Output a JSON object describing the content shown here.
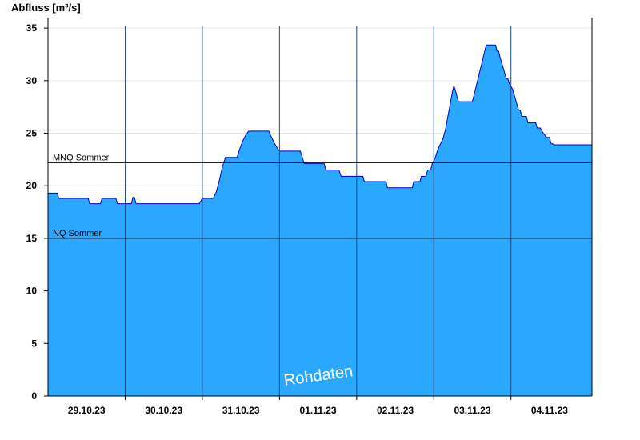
{
  "chart_data": {
    "type": "area",
    "ylabel": "Abfluss [m³/s]",
    "ylim": [
      0,
      36
    ],
    "yticks": [
      0,
      5,
      10,
      15,
      20,
      25,
      30,
      35
    ],
    "xlim": [
      0,
      7.05
    ],
    "x_tick_labels": [
      "29.10.23",
      "30.10.23",
      "31.10.23",
      "01.11.23",
      "02.11.23",
      "03.11.23",
      "04.11.23"
    ],
    "x_tick_positions": [
      0.5,
      1.5,
      2.5,
      3.5,
      4.5,
      5.5,
      6.5
    ],
    "day_boundaries": [
      1,
      2,
      3,
      4,
      5,
      6
    ],
    "fill_color": "#2aa8ff",
    "line_color": "#0000c0",
    "reference_lines": [
      {
        "label": "MNQ Sommer",
        "value": 22.2
      },
      {
        "label": "NQ Sommer",
        "value": 15.0
      }
    ],
    "watermark": "Rohdaten",
    "series": [
      {
        "x": [
          0.0,
          0.12,
          0.14,
          0.52,
          0.54,
          0.68,
          0.7,
          0.88,
          0.9,
          1.08,
          1.1,
          1.12,
          1.14,
          1.22,
          1.96,
          2.0,
          2.02,
          2.14,
          2.18,
          2.22,
          2.26,
          2.3,
          2.45,
          2.48,
          2.52,
          2.56,
          2.6,
          2.64,
          2.66,
          2.7,
          2.86,
          2.89,
          2.93,
          2.97,
          3.0,
          3.01,
          3.05,
          3.27,
          3.3,
          3.32,
          3.34,
          3.58,
          3.6,
          3.77,
          3.8,
          4.08,
          4.1,
          4.38,
          4.4,
          4.72,
          4.74,
          4.82,
          4.84,
          4.9,
          4.92,
          4.96,
          4.98,
          5.02,
          5.05,
          5.08,
          5.12,
          5.15,
          5.18,
          5.2,
          5.22,
          5.24,
          5.26,
          5.28,
          5.3,
          5.32,
          5.34,
          5.36,
          5.38,
          5.4,
          5.42,
          5.44,
          5.46,
          5.48,
          5.5,
          5.52,
          5.54,
          5.56,
          5.58,
          5.6,
          5.62,
          5.64,
          5.66,
          5.68,
          5.7,
          5.72,
          5.74,
          5.76,
          5.78,
          5.8,
          5.82,
          5.84,
          5.86,
          5.88,
          5.9,
          5.92,
          5.94,
          5.96,
          5.98,
          6.02,
          6.04,
          6.06,
          6.08,
          6.1,
          6.12,
          6.14,
          6.16,
          6.18,
          6.2,
          6.22,
          6.24,
          6.26,
          6.28,
          6.3,
          6.32,
          6.34,
          6.38,
          6.42,
          6.46,
          6.48,
          6.5,
          6.52,
          6.54,
          6.56,
          6.58,
          6.6,
          6.62,
          6.64,
          6.66,
          6.68,
          6.7,
          6.72,
          6.74,
          6.76,
          6.78,
          6.8,
          6.82,
          6.84,
          6.86,
          6.88,
          6.9,
          6.92,
          6.94,
          6.96,
          6.98,
          7.0,
          7.02,
          7.05
        ],
        "y": [
          19.3,
          19.3,
          18.8,
          18.8,
          18.3,
          18.3,
          18.8,
          18.8,
          18.3,
          18.3,
          18.9,
          18.9,
          18.3,
          18.3,
          18.3,
          18.8,
          18.8,
          18.8,
          19.4,
          20.5,
          21.8,
          22.7,
          22.7,
          23.4,
          24.2,
          24.8,
          25.2,
          25.2,
          25.2,
          25.2,
          25.2,
          24.7,
          24.1,
          23.6,
          23.3,
          23.3,
          23.3,
          23.3,
          22.6,
          22.1,
          22.1,
          22.1,
          21.5,
          21.5,
          20.9,
          20.9,
          20.4,
          20.4,
          19.8,
          19.8,
          20.4,
          20.4,
          20.9,
          20.9,
          21.5,
          21.5,
          22.1,
          22.7,
          23.4,
          23.9,
          24.5,
          25.3,
          26.5,
          27.3,
          28.1,
          28.9,
          29.5,
          29.1,
          28.5,
          28.0,
          28.0,
          28.0,
          28.0,
          28.0,
          28.0,
          28.0,
          28.0,
          28.0,
          28.0,
          28.6,
          29.2,
          29.8,
          30.4,
          31.0,
          31.6,
          32.2,
          32.8,
          33.4,
          33.4,
          33.4,
          33.4,
          33.4,
          33.4,
          33.4,
          32.8,
          32.8,
          32.2,
          31.7,
          31.2,
          30.7,
          30.2,
          30.2,
          29.7,
          29.2,
          28.7,
          28.2,
          27.7,
          27.2,
          27.2,
          26.6,
          26.6,
          26.6,
          26.6,
          26.0,
          26.0,
          26.0,
          26.0,
          26.0,
          26.0,
          25.5,
          25.5,
          25.0,
          24.6,
          24.6,
          24.6,
          24.0,
          24.0,
          23.9,
          23.9,
          23.9,
          23.9,
          23.9,
          23.9,
          23.9,
          23.9,
          23.9,
          23.9,
          23.9,
          23.9,
          23.9,
          23.9,
          23.9,
          23.9,
          23.9,
          23.9,
          23.9,
          23.9,
          23.9,
          23.9,
          23.9,
          23.9,
          23.9
        ]
      }
    ]
  }
}
